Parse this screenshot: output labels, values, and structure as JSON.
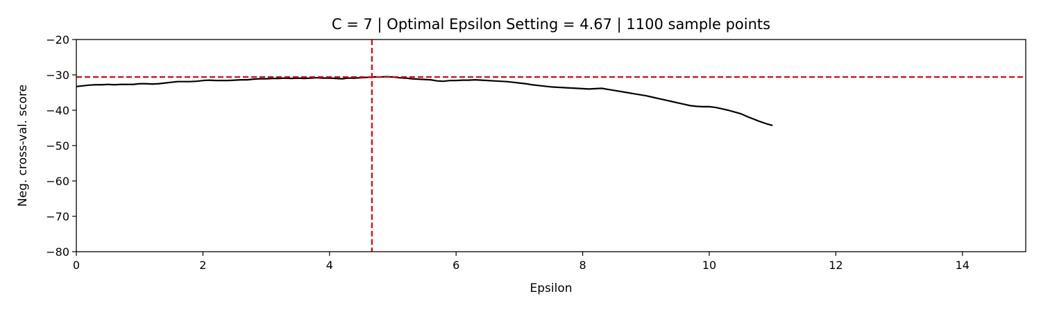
{
  "chart_data": {
    "type": "line",
    "title": "C = 7 | Optimal Epsilon Setting = 4.67 | 1100 sample points",
    "xlabel": "Epsilon",
    "ylabel": "Neg. cross-val. score",
    "xlim": [
      0,
      15
    ],
    "ylim": [
      -80,
      -20
    ],
    "xticks": [
      0,
      2,
      4,
      6,
      8,
      10,
      12,
      14
    ],
    "xtick_labels": [
      "0",
      "2",
      "4",
      "6",
      "8",
      "10",
      "12",
      "14"
    ],
    "yticks": [
      -80,
      -70,
      -60,
      -50,
      -40,
      -30,
      -20
    ],
    "ytick_labels": [
      "−80",
      "−70",
      "−60",
      "−50",
      "−40",
      "−30",
      "−20"
    ],
    "grid": false,
    "optimal_epsilon": 4.67,
    "optimal_score": -30.6,
    "series": [
      {
        "color": "#000000",
        "style": "solid",
        "x": [
          0,
          0.1,
          0.2,
          0.3,
          0.4,
          0.5,
          0.6,
          0.7,
          0.8,
          0.9,
          1.0,
          1.1,
          1.2,
          1.3,
          1.4,
          1.5,
          1.6,
          1.7,
          1.8,
          1.9,
          2.0,
          2.1,
          2.2,
          2.3,
          2.4,
          2.5,
          2.6,
          2.7,
          2.8,
          2.9,
          3.0,
          3.1,
          3.2,
          3.3,
          3.4,
          3.5,
          3.6,
          3.7,
          3.8,
          3.9,
          4.0,
          4.1,
          4.2,
          4.3,
          4.4,
          4.5,
          4.6,
          4.7,
          4.8,
          4.9,
          5.0,
          5.1,
          5.2,
          5.3,
          5.4,
          5.5,
          5.6,
          5.7,
          5.8,
          5.9,
          6.0,
          6.1,
          6.2,
          6.3,
          6.4,
          6.5,
          6.6,
          6.7,
          6.8,
          6.9,
          7.0,
          7.1,
          7.2,
          7.3,
          7.4,
          7.5,
          7.6,
          7.7,
          7.8,
          7.9,
          8.0,
          8.1,
          8.2,
          8.3,
          8.4,
          8.5,
          8.6,
          8.7,
          8.8,
          8.9,
          9.0,
          9.1,
          9.2,
          9.3,
          9.4,
          9.5,
          9.6,
          9.7,
          9.8,
          9.9,
          10.0,
          10.1,
          10.2,
          10.3,
          10.4,
          10.5,
          10.6,
          10.7,
          10.8,
          10.9,
          11.0
        ],
        "y": [
          -33.3,
          -33.1,
          -32.9,
          -32.8,
          -32.8,
          -32.7,
          -32.8,
          -32.7,
          -32.7,
          -32.7,
          -32.5,
          -32.5,
          -32.6,
          -32.5,
          -32.3,
          -32.1,
          -31.9,
          -31.9,
          -31.9,
          -31.8,
          -31.6,
          -31.5,
          -31.6,
          -31.6,
          -31.6,
          -31.5,
          -31.4,
          -31.4,
          -31.2,
          -31.1,
          -31.1,
          -31.0,
          -31.0,
          -30.9,
          -31.0,
          -30.9,
          -31.0,
          -30.9,
          -30.8,
          -30.9,
          -30.9,
          -31.0,
          -31.1,
          -30.9,
          -30.9,
          -30.8,
          -30.7,
          -30.6,
          -30.6,
          -30.5,
          -30.6,
          -30.8,
          -30.9,
          -31.1,
          -31.2,
          -31.3,
          -31.4,
          -31.7,
          -31.8,
          -31.6,
          -31.6,
          -31.5,
          -31.5,
          -31.4,
          -31.5,
          -31.6,
          -31.7,
          -31.8,
          -31.9,
          -32.1,
          -32.3,
          -32.5,
          -32.8,
          -33.0,
          -33.2,
          -33.4,
          -33.5,
          -33.6,
          -33.7,
          -33.8,
          -33.9,
          -34.0,
          -33.9,
          -33.8,
          -34.1,
          -34.4,
          -34.7,
          -35.0,
          -35.3,
          -35.6,
          -35.9,
          -36.3,
          -36.7,
          -37.1,
          -37.5,
          -37.9,
          -38.3,
          -38.7,
          -38.9,
          -39.0,
          -39.0,
          -39.2,
          -39.6,
          -40.0,
          -40.5,
          -41.0,
          -41.8,
          -42.5,
          -43.2,
          -43.8,
          -44.3
        ]
      }
    ],
    "reference_lines": [
      {
        "orientation": "vertical",
        "value": 4.67,
        "color": "#e00000",
        "style": "dashed"
      },
      {
        "orientation": "horizontal",
        "value": -30.6,
        "color": "#e00000",
        "style": "dashed"
      }
    ]
  }
}
